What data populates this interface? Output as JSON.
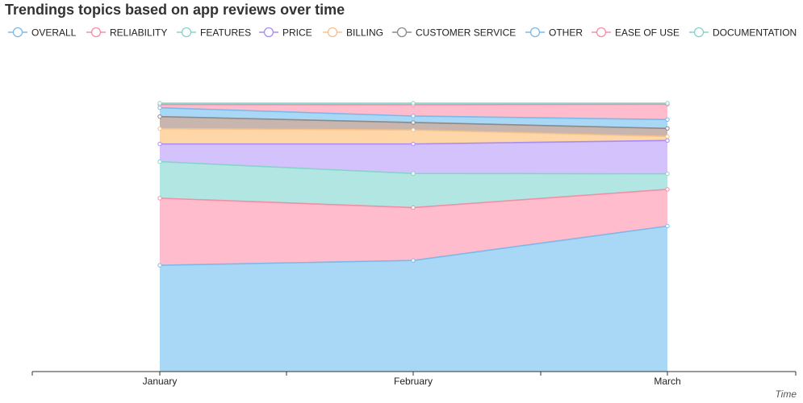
{
  "chart_data": {
    "type": "area",
    "stacked": true,
    "title": "Trendings topics based on app reviews over time",
    "xlabel": "Time",
    "ylabel": "",
    "categories": [
      "January",
      "February",
      "March"
    ],
    "ylim": [
      0,
      100
    ],
    "grid": false,
    "legend_position": "top-left",
    "series": [
      {
        "name": "OVERALL",
        "line_color": "#7eb8e8",
        "fill_color": "#a9d8f7",
        "values": [
          39.6,
          41.4,
          54.2
        ]
      },
      {
        "name": "RELIABILITY",
        "line_color": "#f08fa6",
        "fill_color": "#ffbccc",
        "values": [
          25.0,
          19.7,
          13.7
        ]
      },
      {
        "name": "FEATURES",
        "line_color": "#86d3ca",
        "fill_color": "#b2e6e2",
        "values": [
          13.6,
          12.7,
          5.8
        ]
      },
      {
        "name": "PRICE",
        "line_color": "#a98cf0",
        "fill_color": "#d4c2fd",
        "values": [
          6.6,
          11.0,
          12.4
        ]
      },
      {
        "name": "BILLING",
        "line_color": "#f5c28a",
        "fill_color": "#ffd6a8",
        "values": [
          5.7,
          5.2,
          1.5
        ]
      },
      {
        "name": "CUSTOMER SERVICE",
        "line_color": "#8a8a8a",
        "fill_color": "#c8b5ad",
        "values": [
          4.5,
          2.8,
          3.0
        ]
      },
      {
        "name": "OTHER",
        "line_color": "#7eb8e8",
        "fill_color": "#a9d8f7",
        "values": [
          3.3,
          2.4,
          3.3
        ]
      },
      {
        "name": "EASE OF USE",
        "line_color": "#f08fa6",
        "fill_color": "#ffbccc",
        "values": [
          1.2,
          4.2,
          5.7
        ]
      },
      {
        "name": "DOCUMENTATION",
        "line_color": "#86d3ca",
        "fill_color": "#b2e6e2",
        "values": [
          0.5,
          0.6,
          0.4
        ]
      }
    ]
  }
}
